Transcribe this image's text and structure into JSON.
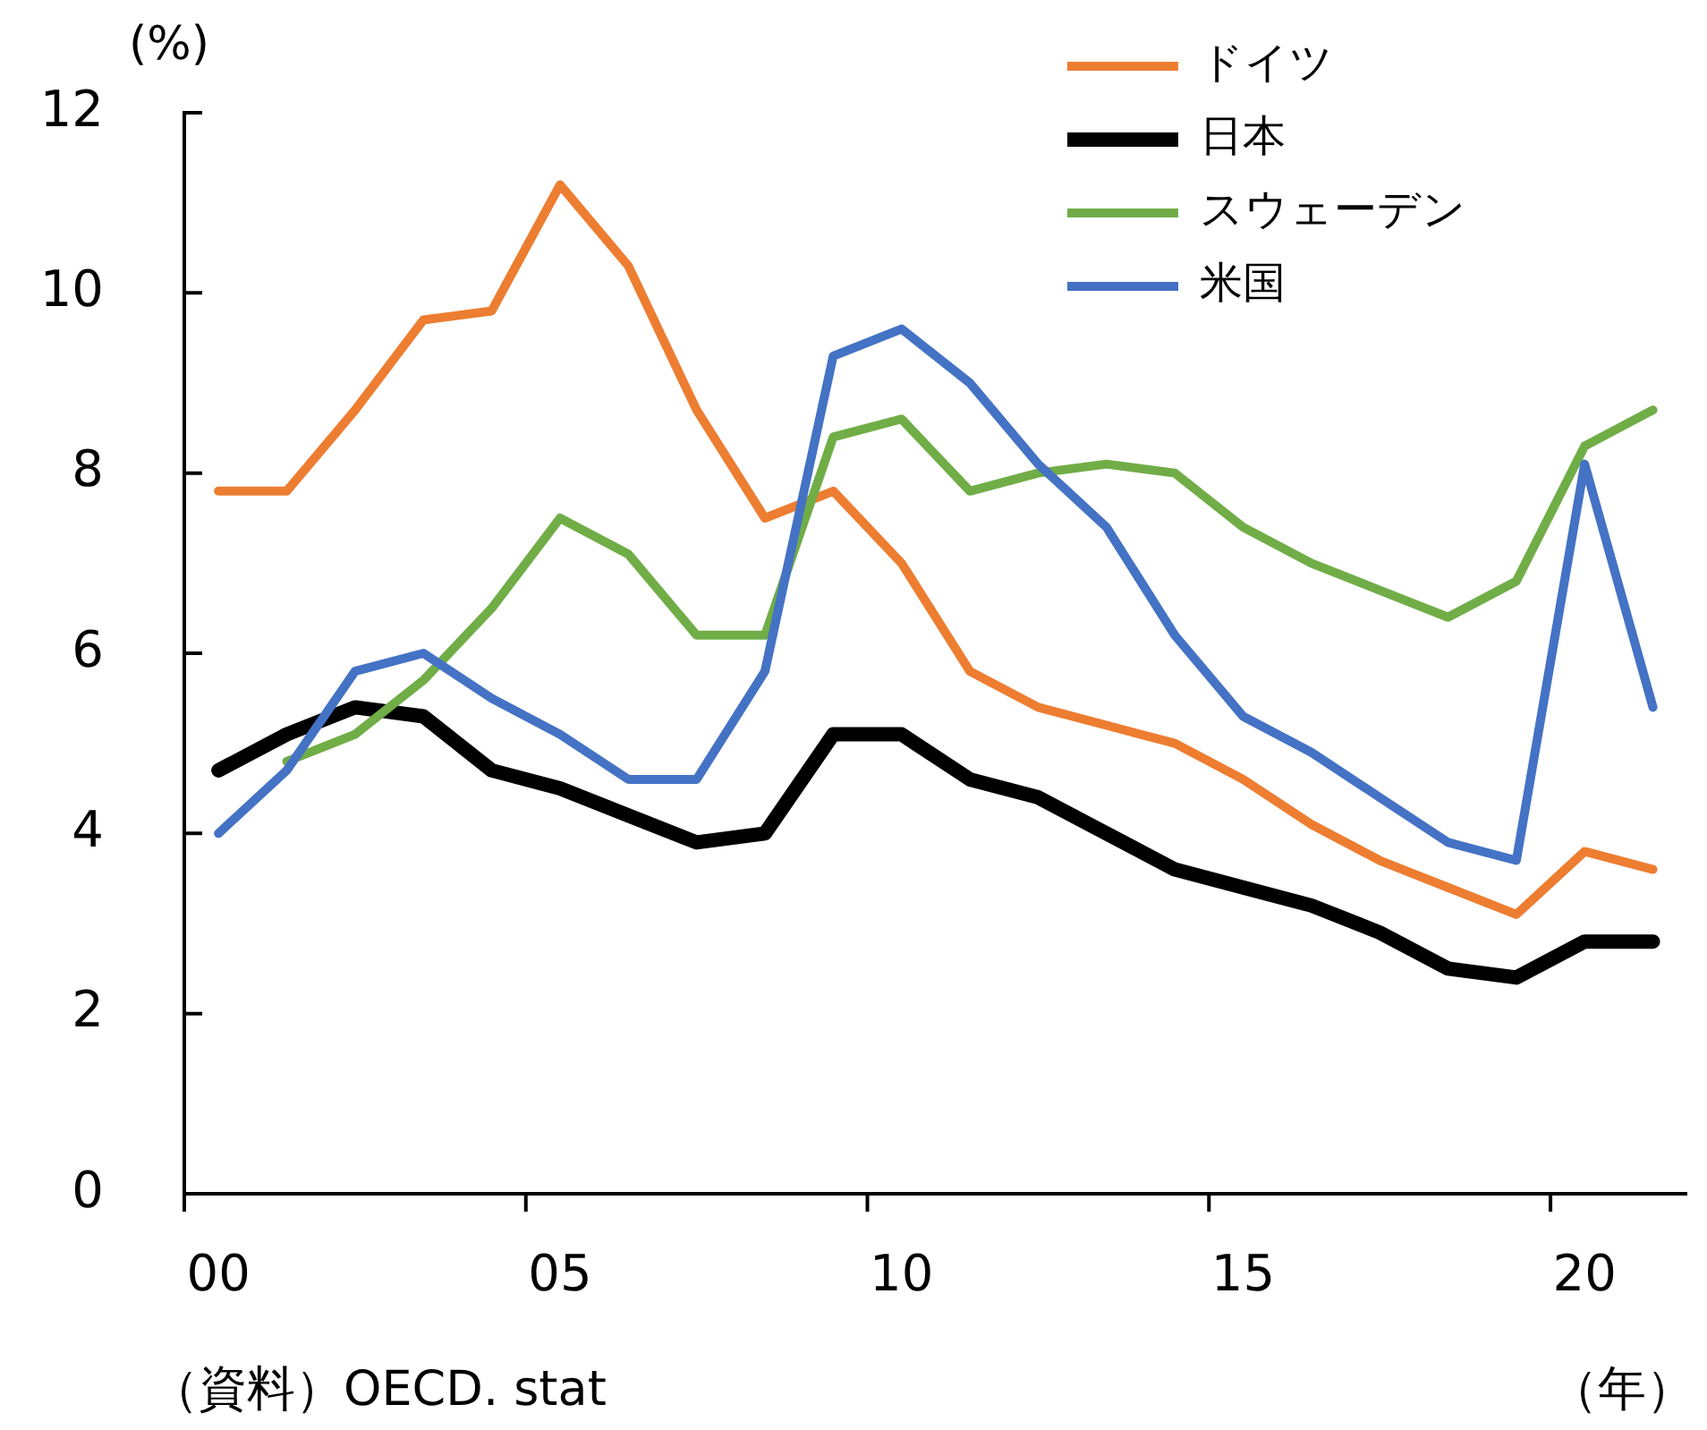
{
  "chart_data": {
    "type": "line",
    "ylabel": "(%)",
    "xlabel": "（年）",
    "annotations": [
      "（資料）OECD. stat"
    ],
    "categories": [
      "00",
      null,
      null,
      null,
      null,
      "05",
      null,
      null,
      null,
      null,
      "10",
      null,
      null,
      null,
      null,
      "15",
      null,
      null,
      null,
      null,
      "20",
      null
    ],
    "series": [
      {
        "name": "ドイツ",
        "color": "#ed7d31",
        "values": [
          7.8,
          7.8,
          8.7,
          9.7,
          9.8,
          11.2,
          10.3,
          8.7,
          7.5,
          7.8,
          7.0,
          5.8,
          5.4,
          5.2,
          5.0,
          4.6,
          4.1,
          3.7,
          3.4,
          3.1,
          3.8,
          3.6
        ]
      },
      {
        "name": "日本",
        "color": "#000000",
        "values": [
          4.7,
          5.1,
          5.4,
          5.3,
          4.7,
          4.5,
          4.2,
          3.9,
          4.0,
          5.1,
          5.1,
          4.6,
          4.4,
          4.0,
          3.6,
          3.4,
          3.2,
          2.9,
          2.5,
          2.4,
          2.8,
          2.8
        ]
      },
      {
        "name": "スウェーデン",
        "color": "#70ad47",
        "values": [
          null,
          4.8,
          5.1,
          5.7,
          6.5,
          7.5,
          7.1,
          6.2,
          6.2,
          8.4,
          8.6,
          7.8,
          8.0,
          8.1,
          8.0,
          7.4,
          7.0,
          6.7,
          6.4,
          6.8,
          8.3,
          8.7
        ]
      },
      {
        "name": "米国",
        "color": "#4472c4",
        "values": [
          4.0,
          4.7,
          5.8,
          6.0,
          5.5,
          5.1,
          4.6,
          4.6,
          5.8,
          9.3,
          9.6,
          9.0,
          8.1,
          7.4,
          6.2,
          5.3,
          4.9,
          4.4,
          3.9,
          3.7,
          8.1,
          5.4
        ]
      }
    ],
    "ylim": [
      0,
      12
    ],
    "yticks": [
      0,
      2,
      4,
      6,
      8,
      10,
      12
    ],
    "legend": "top right"
  }
}
